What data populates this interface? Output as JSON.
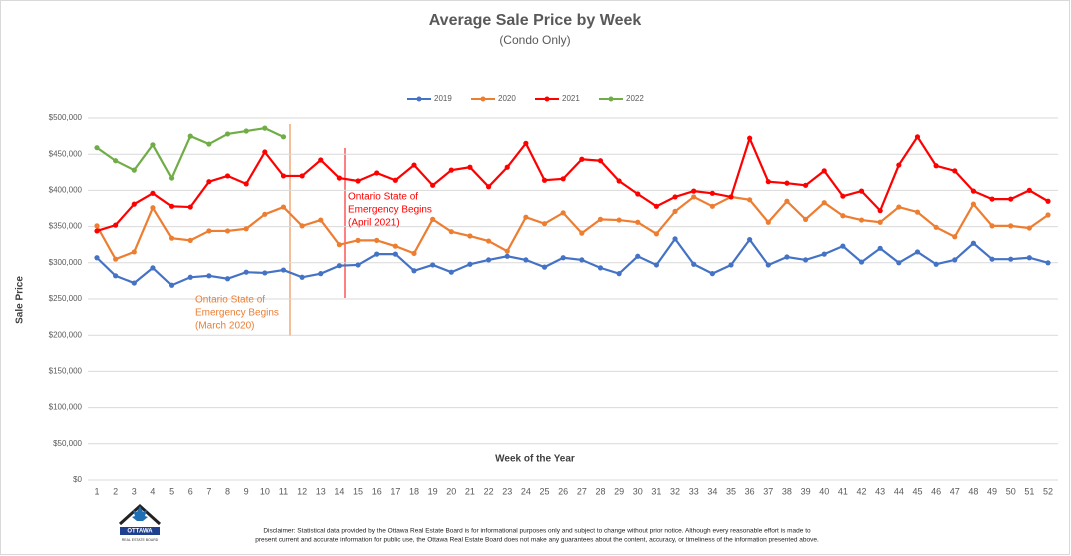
{
  "chart_data": {
    "type": "line",
    "title": "Average Sale Price by Week",
    "subtitle": "(Condo Only)",
    "x_label": "Week of the Year",
    "y_label": "Sale Price",
    "categories": [
      "1",
      "2",
      "3",
      "4",
      "5",
      "6",
      "7",
      "8",
      "9",
      "10",
      "11",
      "12",
      "13",
      "14",
      "15",
      "16",
      "17",
      "18",
      "19",
      "20",
      "21",
      "22",
      "23",
      "24",
      "25",
      "26",
      "27",
      "28",
      "29",
      "30",
      "31",
      "32",
      "33",
      "34",
      "35",
      "36",
      "37",
      "38",
      "39",
      "40",
      "41",
      "42",
      "43",
      "44",
      "45",
      "46",
      "47",
      "48",
      "49",
      "50",
      "51",
      "52"
    ],
    "series": [
      {
        "name": "2019",
        "color": "#4472c4",
        "values": [
          307000,
          282000,
          272000,
          293000,
          269000,
          280000,
          282000,
          278000,
          287000,
          286000,
          290000,
          280000,
          285000,
          296000,
          297000,
          312000,
          312000,
          289000,
          297000,
          287000,
          298000,
          304000,
          309000,
          304000,
          294000,
          307000,
          304000,
          293000,
          285000,
          309000,
          297000,
          333000,
          298000,
          285000,
          297000,
          332000,
          297000,
          308000,
          304000,
          312000,
          323000,
          301000,
          320000,
          300000,
          315000,
          298000,
          304000,
          327000,
          305000,
          305000,
          307000,
          300000
        ]
      },
      {
        "name": "2020",
        "color": "#ed7d31",
        "values": [
          351000,
          305000,
          315000,
          376000,
          334000,
          331000,
          344000,
          344000,
          347000,
          367000,
          377000,
          351000,
          359000,
          325000,
          331000,
          331000,
          323000,
          313000,
          360000,
          343000,
          337000,
          330000,
          316000,
          363000,
          354000,
          369000,
          341000,
          360000,
          359000,
          356000,
          340000,
          371000,
          391000,
          378000,
          391000,
          387000,
          356000,
          385000,
          360000,
          383000,
          365000,
          359000,
          356000,
          377000,
          370000,
          349000,
          336000,
          381000,
          351000,
          351000,
          348000,
          366000
        ]
      },
      {
        "name": "2021",
        "color": "#ff0000",
        "values": [
          344000,
          352000,
          381000,
          396000,
          378000,
          377000,
          412000,
          420000,
          409000,
          453000,
          420000,
          420000,
          442000,
          417000,
          413000,
          424000,
          414000,
          435000,
          407000,
          428000,
          432000,
          405000,
          432000,
          465000,
          414000,
          416000,
          443000,
          441000,
          413000,
          395000,
          378000,
          391000,
          399000,
          396000,
          391000,
          472000,
          412000,
          410000,
          407000,
          427000,
          392000,
          399000,
          372000,
          435000,
          474000,
          434000,
          427000,
          399000,
          388000,
          388000,
          400000,
          385000
        ]
      },
      {
        "name": "2022",
        "color": "#70ad47",
        "values": [
          459000,
          441000,
          428000,
          463000,
          417000,
          475000,
          464000,
          478000,
          482000,
          486000,
          474000,
          null,
          null,
          null,
          null,
          null,
          null,
          null,
          null,
          null,
          null,
          null,
          null,
          null,
          null,
          null,
          null,
          null,
          null,
          null,
          null,
          null,
          null,
          null,
          null,
          null,
          null,
          null,
          null,
          null,
          null,
          null,
          null,
          null,
          null,
          null,
          null,
          null,
          null,
          null,
          null,
          null
        ]
      }
    ],
    "ylim": [
      0,
      500000
    ],
    "yticks": [
      {
        "value": 0,
        "label": "$0"
      },
      {
        "value": 50000,
        "label": "$50,000"
      },
      {
        "value": 100000,
        "label": "$100,000"
      },
      {
        "value": 150000,
        "label": "$150,000"
      },
      {
        "value": 200000,
        "label": "$200,000"
      },
      {
        "value": 250000,
        "label": "$250,000"
      },
      {
        "value": 300000,
        "label": "$300,000"
      },
      {
        "value": 350000,
        "label": "$350,000"
      },
      {
        "value": 400000,
        "label": "$400,000"
      },
      {
        "value": 450000,
        "label": "$450,000"
      },
      {
        "value": 500000,
        "label": "$500,000"
      }
    ],
    "grid": true,
    "legend": "top",
    "annotations": [
      {
        "lines": [
          "Ontario State of",
          "Emergency Begins",
          "(March 2020)"
        ],
        "color": "#ed7d31"
      },
      {
        "lines": [
          "Ontario State of",
          "Emergency Begins",
          "(April 2021)"
        ],
        "color": "#ff0000"
      }
    ]
  },
  "logo": {
    "text": "OTTAWA",
    "subtext": "REAL ESTATE BOARD"
  },
  "disclaimer": [
    "Disclaimer: Statistical data provided by the Ottawa Real Estate Board is for informational purposes only and subject to change without prior notice. Although every reasonable effort is made to",
    "present current and accurate information for public use, the Ottawa Real Estate Board does not make any guarantees about the content, accuracy, or timeliness of the information presented above."
  ]
}
